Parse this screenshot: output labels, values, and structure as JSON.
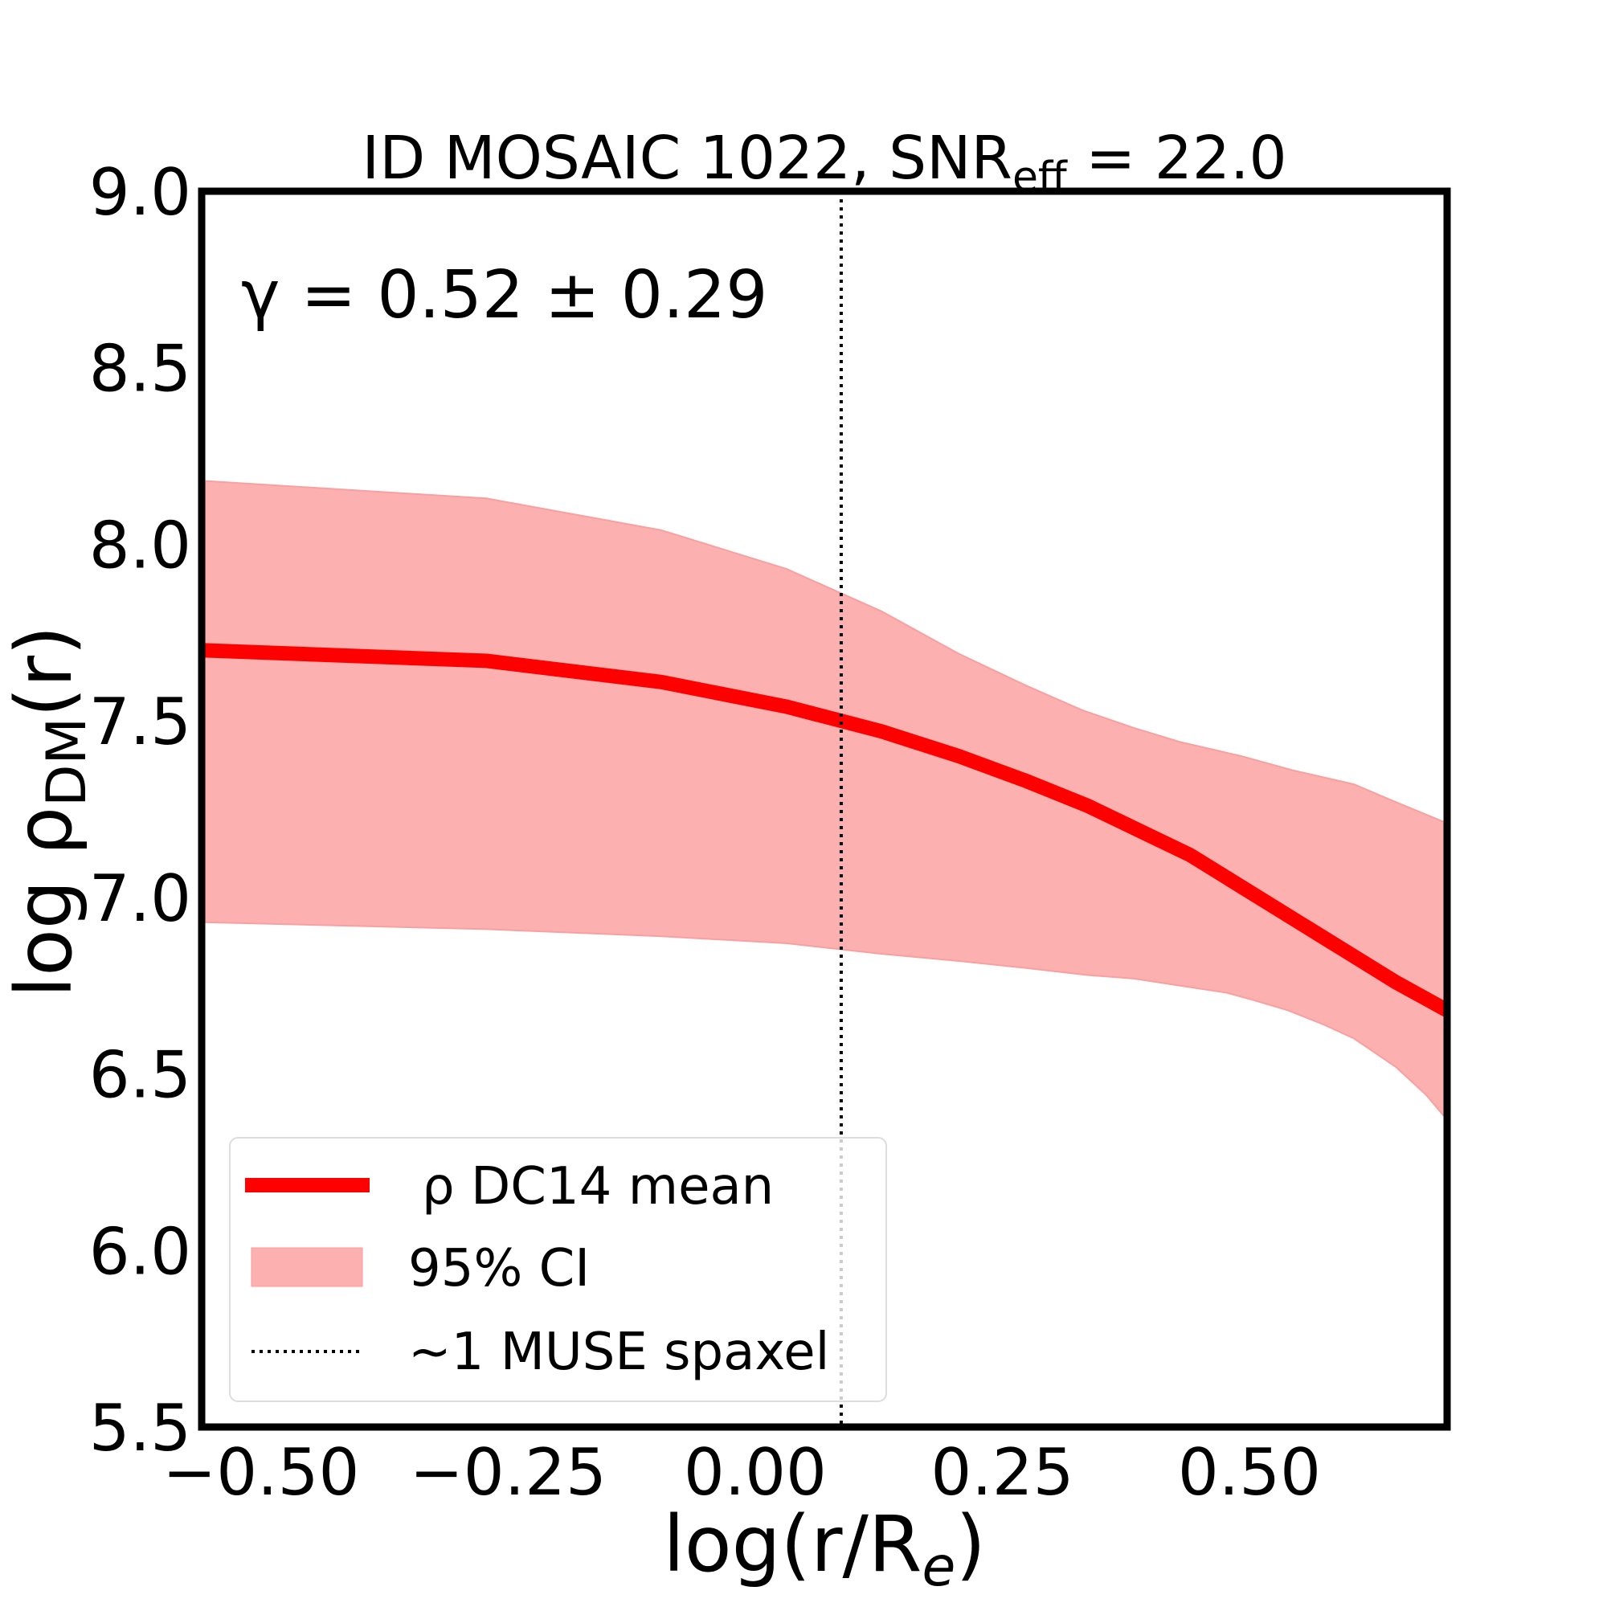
{
  "chart_data": {
    "type": "line",
    "title": "ID MOSAIC 1022, SNR",
    "title_sub": "eff",
    "title_suffix": " = 22.0",
    "xlabel": "log(r/R",
    "xlabel_sub": "e",
    "xlabel_suffix": ")",
    "ylabel": "log ρ",
    "ylabel_sub": "DM",
    "ylabel_suffix": "(r)",
    "annotation": "γ = 0.52 ± 0.29",
    "xlim": [
      -0.56,
      0.7
    ],
    "ylim": [
      5.5,
      9.0
    ],
    "xticks": [
      -0.5,
      -0.25,
      0.0,
      0.25,
      0.5
    ],
    "xtick_labels": [
      "−0.50",
      "−0.25",
      "0.00",
      "0.25",
      "0.50"
    ],
    "yticks": [
      5.5,
      6.0,
      6.5,
      7.0,
      7.5,
      8.0,
      8.5,
      9.0
    ],
    "ytick_labels": [
      "5.5",
      "6.0",
      "6.5",
      "7.0",
      "7.5",
      "8.0",
      "8.5",
      "9.0"
    ],
    "grid": false,
    "legend_position": "bottom-left",
    "series": [
      {
        "name": "ρ DC14 mean",
        "color": "#ff0000",
        "x": [
          -0.56,
          -0.272,
          -0.095,
          0.032,
          0.128,
          0.206,
          0.274,
          0.336,
          0.388,
          0.44,
          0.492,
          0.544,
          0.596,
          0.648,
          0.7
        ],
        "y": [
          7.7,
          7.67,
          7.61,
          7.54,
          7.47,
          7.4,
          7.33,
          7.26,
          7.19,
          7.12,
          7.03,
          6.94,
          6.85,
          6.76,
          6.68
        ]
      }
    ],
    "band": {
      "name": "95% CI",
      "color": "#fdb0b0",
      "x_upper": [
        -0.56,
        -0.272,
        -0.095,
        0.032,
        0.128,
        0.206,
        0.274,
        0.331,
        0.383,
        0.43,
        0.492,
        0.544,
        0.606,
        0.648,
        0.7
      ],
      "upper": [
        8.18,
        8.13,
        8.04,
        7.93,
        7.81,
        7.69,
        7.6,
        7.53,
        7.48,
        7.44,
        7.4,
        7.36,
        7.32,
        7.27,
        7.21
      ],
      "x_lower": [
        -0.56,
        -0.272,
        -0.095,
        0.032,
        0.128,
        0.206,
        0.274,
        0.336,
        0.383,
        0.43,
        0.477,
        0.503,
        0.539,
        0.575,
        0.606,
        0.648,
        0.679,
        0.7
      ],
      "lower": [
        6.93,
        6.91,
        6.89,
        6.87,
        6.84,
        6.82,
        6.8,
        6.78,
        6.77,
        6.75,
        6.73,
        6.71,
        6.68,
        6.64,
        6.6,
        6.52,
        6.44,
        6.37
      ]
    },
    "vline": {
      "name": "~1 MUSE spaxel",
      "x": 0.087,
      "style": "dotted",
      "color": "#000000"
    }
  }
}
